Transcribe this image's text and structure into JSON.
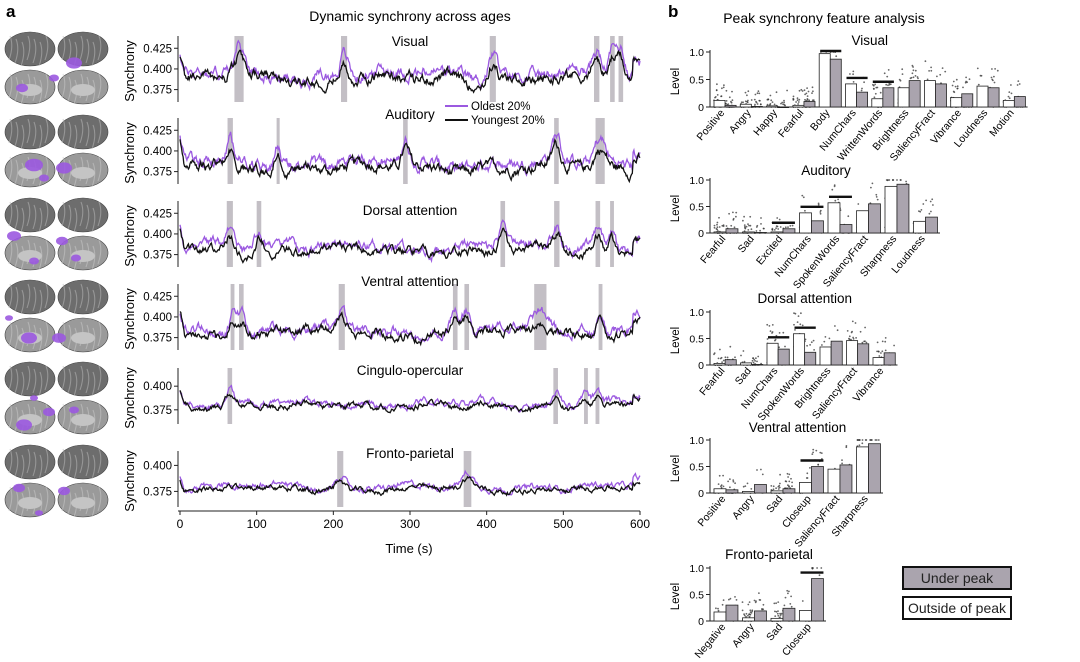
{
  "panel_a": {
    "letter": "a",
    "title": "Dynamic synchrony across ages",
    "xlabel": "Time (s)",
    "ylabel": "Synchrony",
    "x_ticks": [
      "0",
      "100",
      "200",
      "300",
      "400",
      "500",
      "600"
    ],
    "legend": {
      "oldest": "Oldest 20%",
      "youngest": "Youngest 20%"
    },
    "colors": {
      "oldest": "#9b59e0",
      "youngest": "#111111",
      "peak": "#b9b4bb"
    }
  },
  "panel_b": {
    "letter": "b",
    "title": "Peak synchrony feature analysis",
    "ylabel": "Level",
    "legend": {
      "under": "Under peak",
      "outside": "Outside of peak"
    },
    "colors": {
      "under": "#aaa4ae",
      "outside": "#ffffff"
    }
  },
  "chart_data": [
    {
      "type": "line",
      "title": "Dynamic synchrony across ages",
      "xlabel": "Time (s)",
      "ylabel": "Synchrony",
      "xlim": [
        0,
        600
      ],
      "series_names": [
        "Oldest 20%",
        "Youngest 20%"
      ],
      "networks": [
        {
          "name": "Visual",
          "ylim": [
            0.36,
            0.435
          ],
          "yticks": [
            "0.425",
            "0.400",
            "0.375"
          ],
          "tickvals": [
            0.425,
            0.4,
            0.375
          ],
          "base": 0.39,
          "amp": 0.012,
          "peaks": [
            [
              71,
              83
            ],
            [
              210,
              218
            ],
            [
              404,
              412
            ],
            [
              540,
              547
            ],
            [
              561,
              567
            ],
            [
              572,
              578
            ]
          ]
        },
        {
          "name": "Auditory",
          "ylim": [
            0.36,
            0.435
          ],
          "yticks": [
            "0.425",
            "0.400",
            "0.375"
          ],
          "tickvals": [
            0.425,
            0.4,
            0.375
          ],
          "base": 0.382,
          "amp": 0.012,
          "peaks": [
            [
              62,
              69
            ],
            [
              126,
              130
            ],
            [
              291,
              297
            ],
            [
              488,
              494
            ],
            [
              542,
              554
            ]
          ]
        },
        {
          "name": "Dorsal attention",
          "ylim": [
            0.36,
            0.435
          ],
          "yticks": [
            "0.425",
            "0.400",
            "0.375"
          ],
          "tickvals": [
            0.425,
            0.4,
            0.375
          ],
          "base": 0.382,
          "amp": 0.01,
          "peaks": [
            [
              61,
              69
            ],
            [
              100,
              106
            ],
            [
              418,
              424
            ],
            [
              488,
              495
            ],
            [
              542,
              548
            ],
            [
              561,
              566
            ]
          ]
        },
        {
          "name": "Ventral attention",
          "ylim": [
            0.36,
            0.435
          ],
          "yticks": [
            "0.425",
            "0.400",
            "0.375"
          ],
          "tickvals": [
            0.425,
            0.4,
            0.375
          ],
          "base": 0.382,
          "amp": 0.01,
          "peaks": [
            [
              66,
              71
            ],
            [
              77,
              83
            ],
            [
              207,
              215
            ],
            [
              356,
              362
            ],
            [
              371,
              377
            ],
            [
              462,
              478
            ],
            [
              546,
              551
            ]
          ]
        },
        {
          "name": "Cingulo-opercular",
          "ylim": [
            0.36,
            0.415
          ],
          "yticks": [
            "0.400",
            "0.375"
          ],
          "tickvals": [
            0.4,
            0.375
          ],
          "base": 0.38,
          "amp": 0.006,
          "peaks": [
            [
              62,
              68
            ],
            [
              487,
              493
            ],
            [
              527,
              532
            ],
            [
              542,
              547
            ]
          ]
        },
        {
          "name": "Fronto-parietal",
          "ylim": [
            0.36,
            0.41
          ],
          "yticks": [
            "0.400",
            "0.375"
          ],
          "tickvals": [
            0.4,
            0.375
          ],
          "base": 0.378,
          "amp": 0.005,
          "peaks": [
            [
              205,
              213
            ],
            [
              370,
              380
            ]
          ]
        }
      ]
    },
    {
      "type": "bar",
      "title": "Peak synchrony feature analysis",
      "ylabel": "Level",
      "ylim": [
        0,
        1.0
      ],
      "yticks": [
        "1.0",
        "0.5",
        "0"
      ],
      "series_names": [
        "Outside of peak",
        "Under peak"
      ],
      "panels": [
        {
          "name": "Visual",
          "categories": [
            "Positive",
            "Angry",
            "Happy",
            "Fearful",
            "Body",
            "NumChars",
            "WrittenWords",
            "Brightness",
            "SaliencyFract",
            "Vibrance",
            "Loudness",
            "Motion"
          ],
          "outside": [
            0.12,
            0.05,
            0.02,
            0.03,
            0.97,
            0.42,
            0.15,
            0.35,
            0.48,
            0.17,
            0.38,
            0.12
          ],
          "under": [
            0.03,
            0.01,
            0.0,
            0.1,
            0.87,
            0.27,
            0.35,
            0.48,
            0.42,
            0.24,
            0.35,
            0.19
          ],
          "sig": [
            "Body",
            "NumChars",
            "WrittenWords"
          ]
        },
        {
          "name": "Auditory",
          "categories": [
            "Fearful",
            "Sad",
            "Excited",
            "NumChars",
            "SpokenWords",
            "SaliencyFract",
            "Sharpness",
            "Loudness"
          ],
          "outside": [
            0.02,
            0.02,
            0.02,
            0.38,
            0.57,
            0.42,
            0.88,
            0.22
          ],
          "under": [
            0.08,
            0.01,
            0.08,
            0.23,
            0.16,
            0.55,
            0.92,
            0.3
          ],
          "sig": [
            "Excited",
            "NumChars",
            "SpokenWords"
          ]
        },
        {
          "name": "Dorsal attention",
          "categories": [
            "Fearful",
            "Sad",
            "NumChars",
            "SpokenWords",
            "Brightness",
            "SaliencyFract",
            "Vibrance"
          ],
          "outside": [
            0.03,
            0.04,
            0.41,
            0.59,
            0.34,
            0.46,
            0.14
          ],
          "under": [
            0.1,
            0.01,
            0.3,
            0.24,
            0.45,
            0.4,
            0.23
          ],
          "sig": [
            "NumChars",
            "SpokenWords"
          ]
        },
        {
          "name": "Ventral attention",
          "categories": [
            "Positive",
            "Angry",
            "Sad",
            "Closeup",
            "SaliencyFract",
            "Sharpness"
          ],
          "outside": [
            0.08,
            0.03,
            0.04,
            0.2,
            0.45,
            0.87
          ],
          "under": [
            0.06,
            0.16,
            0.08,
            0.5,
            0.53,
            0.93
          ],
          "sig": [
            "Closeup"
          ]
        },
        {
          "name": "Fronto-parietal",
          "categories": [
            "Negative",
            "Angry",
            "Sad",
            "Closeup"
          ],
          "outside": [
            0.17,
            0.06,
            0.05,
            0.2
          ],
          "under": [
            0.3,
            0.19,
            0.24,
            0.8
          ],
          "sig": [
            "Closeup"
          ]
        }
      ]
    }
  ]
}
